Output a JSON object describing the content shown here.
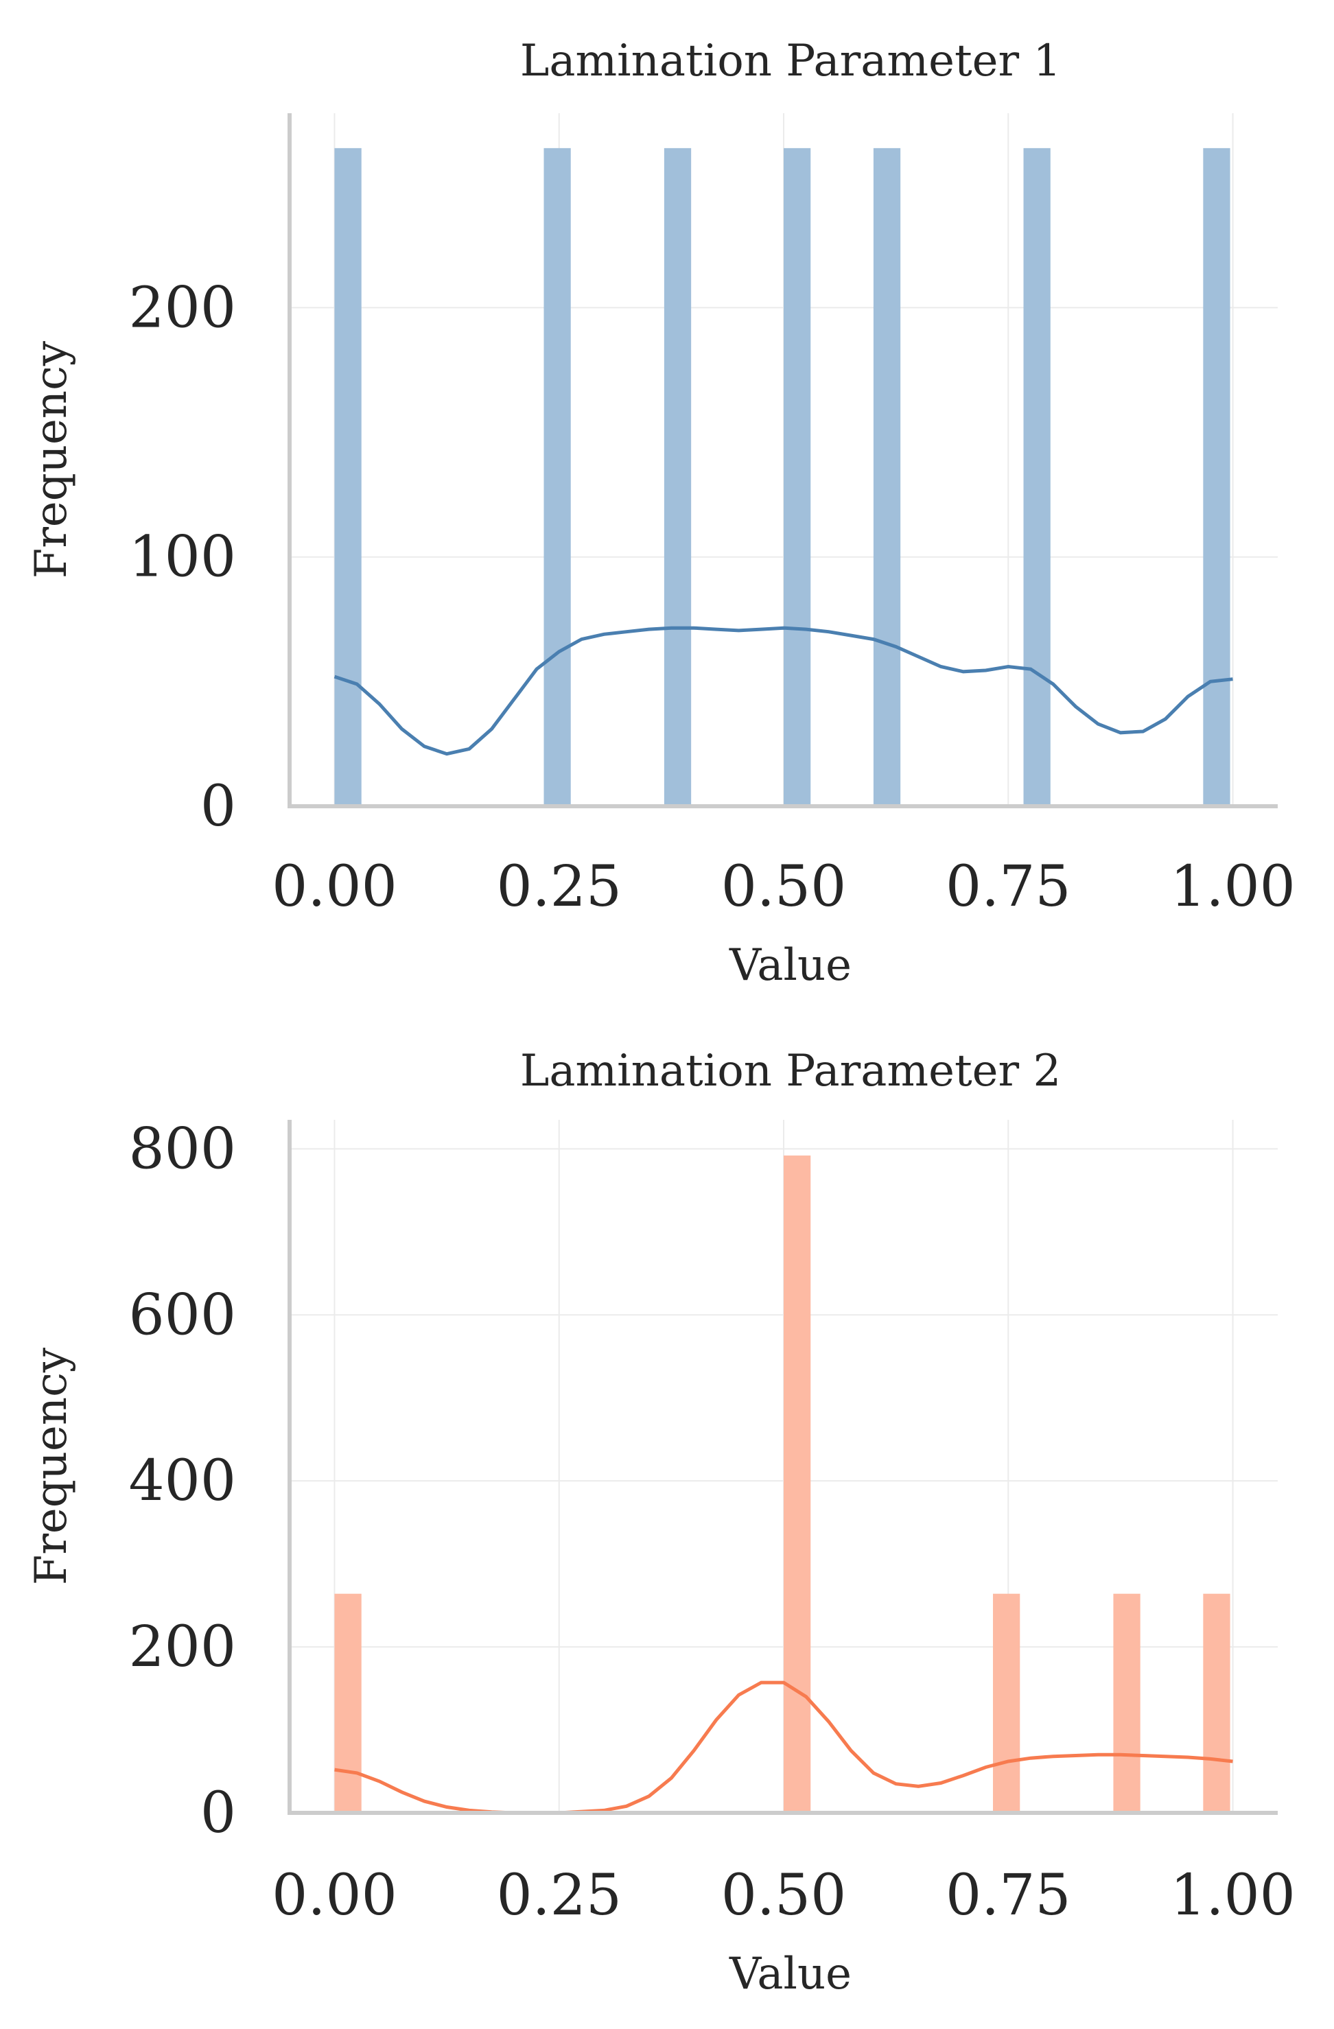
{
  "chart_data": [
    {
      "type": "bar",
      "subtype": "histogram-with-kde",
      "title": "Lamination Parameter 1",
      "xlabel": "Value",
      "ylabel": "Frequency",
      "xlim": [
        -0.05,
        1.05
      ],
      "ylim": [
        0,
        278
      ],
      "xticks": [
        0.0,
        0.25,
        0.5,
        0.75,
        1.0
      ],
      "xtick_labels": [
        "0.00",
        "0.25",
        "0.50",
        "0.75",
        "1.00"
      ],
      "yticks": [
        0,
        100,
        200
      ],
      "ytick_labels": [
        "0",
        "100",
        "200"
      ],
      "grid": true,
      "bar_color": "#a1bfda",
      "kde_color": "#4a7fb0",
      "bins": [
        {
          "x0": 0.0,
          "x1": 0.03,
          "count": 264
        },
        {
          "x0": 0.233,
          "x1": 0.263,
          "count": 264
        },
        {
          "x0": 0.367,
          "x1": 0.397,
          "count": 264
        },
        {
          "x0": 0.5,
          "x1": 0.53,
          "count": 264
        },
        {
          "x0": 0.6,
          "x1": 0.63,
          "count": 264
        },
        {
          "x0": 0.767,
          "x1": 0.797,
          "count": 264
        },
        {
          "x0": 0.967,
          "x1": 0.997,
          "count": 264
        }
      ],
      "kde": {
        "x": [
          0.0,
          0.025,
          0.05,
          0.075,
          0.1,
          0.125,
          0.15,
          0.175,
          0.2,
          0.225,
          0.25,
          0.275,
          0.3,
          0.325,
          0.35,
          0.375,
          0.4,
          0.425,
          0.45,
          0.475,
          0.5,
          0.525,
          0.55,
          0.575,
          0.6,
          0.625,
          0.65,
          0.675,
          0.7,
          0.725,
          0.75,
          0.775,
          0.8,
          0.825,
          0.85,
          0.875,
          0.9,
          0.925,
          0.95,
          0.975,
          1.0
        ],
        "y": [
          52,
          49,
          41,
          31,
          24,
          21,
          23,
          31,
          43,
          55,
          62,
          67,
          69,
          70,
          71,
          71.5,
          71.5,
          71,
          70.5,
          71,
          71.5,
          71,
          70,
          68.5,
          67,
          64,
          60,
          56,
          54,
          54.5,
          56,
          55,
          49,
          40,
          33,
          29.5,
          30,
          35,
          44,
          50,
          51
        ]
      }
    },
    {
      "type": "bar",
      "subtype": "histogram-with-kde",
      "title": "Lamination Parameter 2",
      "xlabel": "Value",
      "ylabel": "Frequency",
      "xlim": [
        -0.05,
        1.05
      ],
      "ylim": [
        0,
        835
      ],
      "xticks": [
        0.0,
        0.25,
        0.5,
        0.75,
        1.0
      ],
      "xtick_labels": [
        "0.00",
        "0.25",
        "0.50",
        "0.75",
        "1.00"
      ],
      "yticks": [
        0,
        200,
        400,
        600,
        800
      ],
      "ytick_labels": [
        "0",
        "200",
        "400",
        "600",
        "800"
      ],
      "grid": true,
      "bar_color": "#fdbaa3",
      "kde_color": "#f77b4f",
      "bins": [
        {
          "x0": 0.0,
          "x1": 0.03,
          "count": 264
        },
        {
          "x0": 0.5,
          "x1": 0.53,
          "count": 792
        },
        {
          "x0": 0.733,
          "x1": 0.763,
          "count": 264
        },
        {
          "x0": 0.867,
          "x1": 0.897,
          "count": 264
        },
        {
          "x0": 0.967,
          "x1": 0.997,
          "count": 264
        }
      ],
      "kde": {
        "x": [
          0.0,
          0.025,
          0.05,
          0.075,
          0.1,
          0.125,
          0.15,
          0.175,
          0.2,
          0.25,
          0.3,
          0.325,
          0.35,
          0.375,
          0.4,
          0.425,
          0.45,
          0.475,
          0.5,
          0.525,
          0.55,
          0.575,
          0.6,
          0.625,
          0.65,
          0.675,
          0.7,
          0.725,
          0.75,
          0.775,
          0.8,
          0.825,
          0.85,
          0.875,
          0.9,
          0.925,
          0.95,
          0.975,
          1.0
        ],
        "y": [
          52,
          48,
          38,
          25,
          14,
          7,
          3,
          1,
          0,
          0,
          3,
          8,
          20,
          42,
          75,
          112,
          142,
          157,
          157,
          140,
          110,
          75,
          48,
          35,
          32,
          36,
          45,
          55,
          62,
          66,
          68,
          69,
          70,
          70,
          69,
          68,
          67,
          65,
          62
        ]
      }
    }
  ]
}
